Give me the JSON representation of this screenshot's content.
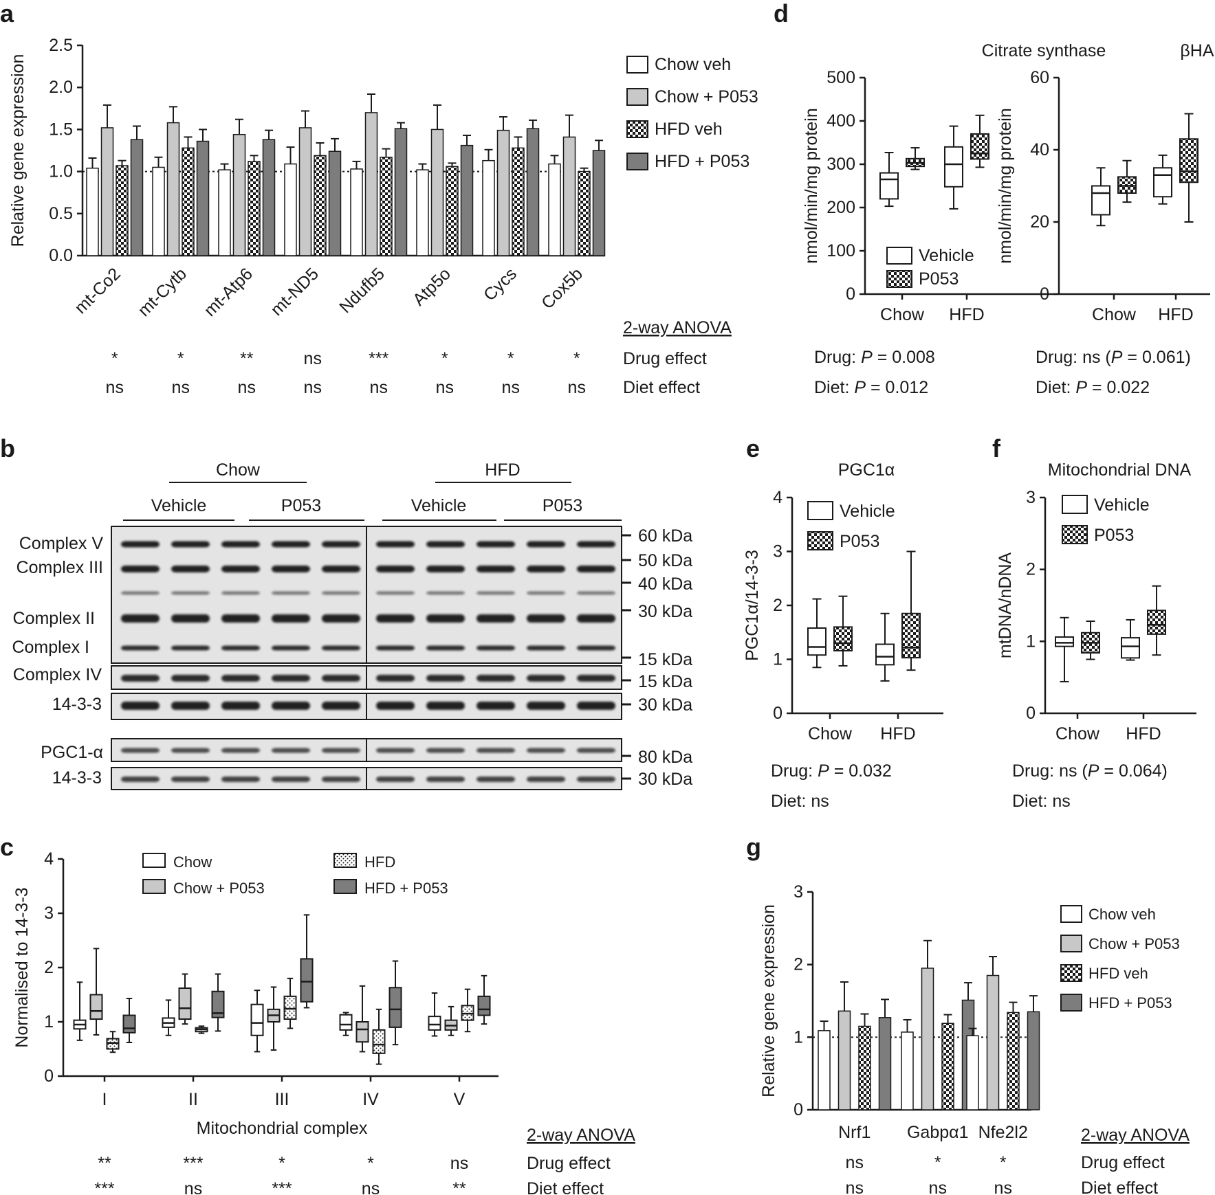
{
  "colors": {
    "veh": "#ffffff",
    "p053": "#c8c8c8",
    "hfd_p053": "#7d7d7d",
    "ink": "#1a1a1a"
  },
  "patterns": {
    "checker": "checker-pattern",
    "dots": "dot-pattern"
  },
  "anova_header": "2-way ANOVA",
  "chart_data": [
    {
      "id": "a",
      "panel": "a",
      "type": "bar",
      "ylabel": "Relative gene expression",
      "ylim": [
        0,
        2.5
      ],
      "yticks": [
        "0.0",
        "0.5",
        "1.0",
        "1.5",
        "2.0",
        "2.5"
      ],
      "reference_line": 1.0,
      "categories": [
        "mt-Co2",
        "mt-Cytb",
        "mt-Atp6",
        "mt-ND5",
        "Ndufb5",
        "Atp5o",
        "Cycs",
        "Cox5b"
      ],
      "series": [
        {
          "name": "Chow veh",
          "style": "white",
          "values": [
            1.04,
            1.05,
            1.02,
            1.09,
            1.03,
            1.02,
            1.13,
            1.09
          ],
          "errors": [
            0.12,
            0.12,
            0.07,
            0.2,
            0.09,
            0.07,
            0.13,
            0.1
          ]
        },
        {
          "name": "Chow + P053",
          "style": "lightgray",
          "values": [
            1.52,
            1.58,
            1.44,
            1.52,
            1.7,
            1.5,
            1.49,
            1.41
          ],
          "errors": [
            0.27,
            0.19,
            0.18,
            0.2,
            0.22,
            0.29,
            0.16,
            0.26
          ]
        },
        {
          "name": "HFD veh",
          "style": "checker",
          "values": [
            1.07,
            1.28,
            1.12,
            1.19,
            1.17,
            1.06,
            1.28,
            1.0
          ],
          "errors": [
            0.06,
            0.13,
            0.07,
            0.15,
            0.1,
            0.04,
            0.13,
            0.04
          ]
        },
        {
          "name": "HFD + P053",
          "style": "darkgray",
          "values": [
            1.38,
            1.36,
            1.38,
            1.24,
            1.51,
            1.31,
            1.51,
            1.25
          ],
          "errors": [
            0.16,
            0.14,
            0.11,
            0.15,
            0.07,
            0.12,
            0.1,
            0.12
          ]
        }
      ],
      "anova": {
        "rows": [
          "Drug effect",
          "Diet effect"
        ],
        "drug": [
          "*",
          "*",
          "**",
          "ns",
          "***",
          "*",
          "*",
          "*"
        ],
        "diet": [
          "ns",
          "ns",
          "ns",
          "ns",
          "ns",
          "ns",
          "ns",
          "ns"
        ]
      }
    },
    {
      "id": "c",
      "panel": "c",
      "type": "box",
      "ylabel": "Normalised to 14-3-3",
      "xlabel": "Mitochondrial complex",
      "ylim": [
        0,
        4
      ],
      "yticks": [
        "0",
        "1",
        "2",
        "3",
        "4"
      ],
      "categories": [
        "I",
        "II",
        "III",
        "IV",
        "V"
      ],
      "series": [
        {
          "name": "Chow",
          "style": "white",
          "boxes": [
            [
              0.66,
              0.87,
              0.95,
              1.03,
              1.73
            ],
            [
              0.75,
              0.9,
              0.98,
              1.07,
              1.4
            ],
            [
              0.45,
              0.75,
              0.98,
              1.32,
              1.58
            ],
            [
              0.75,
              0.85,
              0.95,
              1.13,
              1.17
            ],
            [
              0.74,
              0.85,
              0.95,
              1.1,
              1.53
            ]
          ]
        },
        {
          "name": "Chow + P053",
          "style": "lightgray",
          "boxes": [
            [
              0.76,
              1.05,
              1.2,
              1.5,
              2.35
            ],
            [
              0.96,
              1.05,
              1.25,
              1.62,
              1.88
            ],
            [
              0.48,
              1.0,
              1.12,
              1.23,
              1.64
            ],
            [
              0.45,
              0.63,
              0.86,
              1.0,
              1.66
            ],
            [
              0.75,
              0.85,
              0.93,
              1.03,
              1.28
            ]
          ]
        },
        {
          "name": "HFD",
          "style": "dots",
          "boxes": [
            [
              0.44,
              0.5,
              0.61,
              0.69,
              0.82
            ],
            [
              0.79,
              0.82,
              0.86,
              0.89,
              0.92
            ],
            [
              0.88,
              1.05,
              1.24,
              1.47,
              1.8
            ],
            [
              0.22,
              0.42,
              0.58,
              0.85,
              1.23
            ],
            [
              0.82,
              1.03,
              1.15,
              1.3,
              1.6
            ]
          ]
        },
        {
          "name": "HFD + P053",
          "style": "darkgray",
          "boxes": [
            [
              0.62,
              0.8,
              0.88,
              1.12,
              1.43
            ],
            [
              0.83,
              1.08,
              1.16,
              1.56,
              1.88
            ],
            [
              1.26,
              1.37,
              1.74,
              2.16,
              2.97
            ],
            [
              0.58,
              0.9,
              1.23,
              1.63,
              2.12
            ],
            [
              0.96,
              1.12,
              1.23,
              1.47,
              1.85
            ]
          ]
        }
      ],
      "anova": {
        "rows": [
          "Drug effect",
          "Diet effect"
        ],
        "drug": [
          "**",
          "***",
          "*",
          "*",
          "ns"
        ],
        "diet": [
          "***",
          "ns",
          "***",
          "ns",
          "**"
        ]
      }
    },
    {
      "id": "d1",
      "panel": "d",
      "type": "box",
      "title": "Citrate synthase",
      "ylabel": "nmol/min/mg protein",
      "ylim": [
        0,
        500
      ],
      "yticks": [
        "0",
        "100",
        "200",
        "300",
        "400",
        "500"
      ],
      "categories": [
        "Chow",
        "HFD"
      ],
      "series": [
        {
          "name": "Vehicle",
          "style": "white",
          "boxes": [
            [
              203,
              220,
              265,
              280,
              327
            ],
            [
              197,
              248,
              300,
              340,
              388
            ]
          ]
        },
        {
          "name": "P053",
          "style": "checker",
          "boxes": [
            [
              288,
              295,
              303,
              313,
              338
            ],
            [
              293,
              312,
              325,
              370,
              413
            ]
          ]
        }
      ],
      "stats": [
        "Drug: P = 0.008",
        "Diet: P = 0.012"
      ]
    },
    {
      "id": "d2",
      "panel": "d",
      "type": "box",
      "title": "βHAD",
      "ylabel": "nmol/min/mg protein",
      "ylim": [
        0,
        60
      ],
      "yticks": [
        "0",
        "20",
        "40",
        "60"
      ],
      "categories": [
        "Chow",
        "HFD"
      ],
      "series": [
        {
          "name": "Vehicle",
          "style": "white",
          "boxes": [
            [
              19,
              22,
              28,
              30,
              35
            ],
            [
              25,
              27,
              33,
              35,
              38.5
            ]
          ]
        },
        {
          "name": "P053",
          "style": "checker",
          "boxes": [
            [
              25.5,
              28,
              30,
              32.5,
              37
            ],
            [
              20,
              31,
              34,
              43,
              50
            ]
          ]
        }
      ],
      "stats": [
        "Drug: ns (P = 0.061)",
        "Diet: P = 0.022"
      ]
    },
    {
      "id": "e",
      "panel": "e",
      "type": "box",
      "title": "PGC1α",
      "ylabel": "PGC1α/14-3-3",
      "ylim": [
        0,
        4
      ],
      "yticks": [
        "0",
        "1",
        "2",
        "3",
        "4"
      ],
      "categories": [
        "Chow",
        "HFD"
      ],
      "series": [
        {
          "name": "Vehicle",
          "style": "white",
          "boxes": [
            [
              0.85,
              1.08,
              1.23,
              1.58,
              2.12
            ],
            [
              0.6,
              0.9,
              1.05,
              1.28,
              1.85
            ]
          ]
        },
        {
          "name": "P053",
          "style": "checker",
          "boxes": [
            [
              0.88,
              1.16,
              1.3,
              1.6,
              2.17
            ],
            [
              0.8,
              1.03,
              1.22,
              1.85,
              3.0
            ]
          ]
        }
      ],
      "stats": [
        "Drug: P = 0.032",
        "Diet: ns"
      ]
    },
    {
      "id": "f",
      "panel": "f",
      "type": "box",
      "title": "Mitochondrial DNA",
      "ylabel": "mtDNA/nDNA",
      "ylim": [
        0,
        3
      ],
      "yticks": [
        "0",
        "1",
        "2",
        "3"
      ],
      "categories": [
        "Chow",
        "HFD"
      ],
      "series": [
        {
          "name": "Vehicle",
          "style": "white",
          "boxes": [
            [
              0.44,
              0.93,
              0.98,
              1.06,
              1.33
            ],
            [
              0.74,
              0.77,
              0.93,
              1.05,
              1.3
            ]
          ]
        },
        {
          "name": "P053",
          "style": "checker",
          "boxes": [
            [
              0.75,
              0.84,
              0.98,
              1.12,
              1.28
            ],
            [
              0.81,
              1.1,
              1.23,
              1.43,
              1.77
            ]
          ]
        }
      ],
      "stats": [
        "Drug: ns (P = 0.064)",
        "Diet: ns"
      ]
    },
    {
      "id": "g",
      "panel": "g",
      "type": "bar",
      "ylabel": "Relative gene expression",
      "ylim": [
        0,
        3
      ],
      "yticks": [
        "0",
        "1",
        "2",
        "3"
      ],
      "reference_line": 1.0,
      "categories": [
        "Nrf1",
        "Gabpα1",
        "Nfe2l2"
      ],
      "series": [
        {
          "name": "Chow veh",
          "style": "white",
          "values": [
            1.09,
            1.07,
            1.02
          ],
          "errors": [
            0.13,
            0.17,
            0.1
          ]
        },
        {
          "name": "Chow + P053",
          "style": "lightgray",
          "values": [
            1.36,
            1.95,
            1.85
          ],
          "errors": [
            0.4,
            0.38,
            0.26
          ]
        },
        {
          "name": "HFD veh",
          "style": "checker",
          "values": [
            1.15,
            1.19,
            1.34
          ],
          "errors": [
            0.17,
            0.12,
            0.14
          ]
        },
        {
          "name": "HFD + P053",
          "style": "darkgray",
          "values": [
            1.27,
            1.51,
            1.35
          ],
          "errors": [
            0.25,
            0.24,
            0.22
          ]
        }
      ],
      "anova": {
        "rows": [
          "Drug effect",
          "Diet effect"
        ],
        "drug": [
          "ns",
          "*",
          "*"
        ],
        "diet": [
          "ns",
          "ns",
          "ns"
        ]
      }
    }
  ],
  "western": {
    "diet_groups": [
      "Chow",
      "HFD"
    ],
    "treatment_groups": [
      "Vehicle",
      "P053",
      "Vehicle",
      "P053"
    ],
    "blot_labels": [
      "Complex V",
      "Complex III",
      "Complex II",
      "Complex I",
      "Complex IV",
      "14-3-3",
      "PGC1-α",
      "14-3-3"
    ],
    "markers": [
      "60 kDa",
      "50 kDa",
      "40 kDa",
      "30 kDa",
      "15 kDa",
      "15 kDa",
      "30 kDa",
      "80 kDa",
      "30 kDa"
    ]
  }
}
